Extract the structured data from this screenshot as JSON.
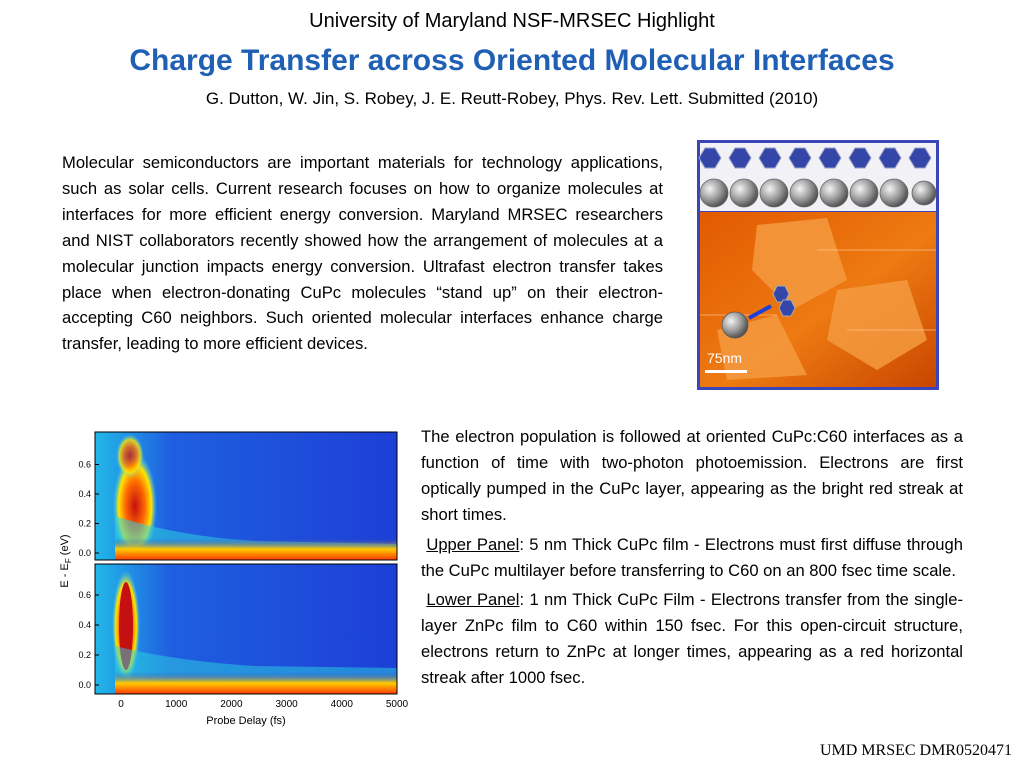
{
  "header": {
    "org": "University of Maryland NSF-MRSEC Highlight",
    "title": "Charge Transfer across Oriented Molecular Interfaces",
    "citation": "G. Dutton, W. Jin, S. Robey, J. E. Reutt-Robey, Phys. Rev. Lett. Submitted (2010)"
  },
  "intro": "Molecular semiconductors are important materials for technology applications, such as solar cells. Current research focuses on how to organize molecules  at interfaces for more efficient energy conversion.  Maryland MRSEC researchers and NIST collaborators recently showed how the arrangement of molecules at a molecular junction impacts energy conversion. Ultrafast electron transfer takes place when electron-donating CuPc molecules “stand up” on their electron-accepting C60 neighbors. Such oriented molecular interfaces enhance  charge transfer, leading to more efficient devices.",
  "afm_image": {
    "scale_label": "75nm"
  },
  "figure": {
    "xlabel": "Probe Delay (fs)",
    "ylabel": "E - E",
    "ylabel_sub": "F",
    "ylabel_unit": " (eV)",
    "xticks": [
      "0",
      "1000",
      "2000",
      "3000",
      "4000",
      "5000"
    ],
    "yticks": [
      "0.0",
      "0.2",
      "0.4",
      "0.6"
    ]
  },
  "explanation": {
    "p1": "The electron population is followed at oriented CuPc:C60 interfaces as a function of time with two-photon photoemission.  Electrons are first optically pumped  in the CuPc layer, appearing as the bright red streak at short times.",
    "p2_label": "Upper Panel",
    "p2_text": ": 5 nm Thick CuPc film -  Electrons must  first diffuse through the  CuPc multilayer before  transferring  to C60 on an 800  fsec time scale.",
    "p3_label": "Lower Panel",
    "p3_text": ": 1 nm Thick CuPc Film -  Electrons transfer from the single-layer ZnPc film to C60 within 150 fsec.  For this open-circuit structure, electrons return to ZnPc at longer times, appearing as a red horizontal streak after 1000 fsec."
  },
  "footer": "UMD MRSEC DMR0520471",
  "colors": {
    "title": "#1f5fb4",
    "afm_frame": "#3a46b8",
    "heat_low": "#1d3fd6",
    "heat_high": "#d61010"
  }
}
